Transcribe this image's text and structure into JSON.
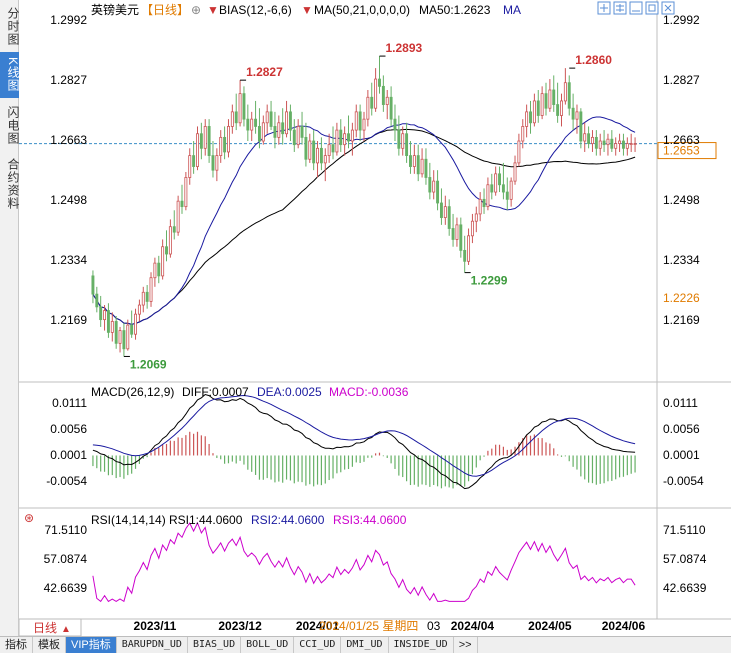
{
  "sidebar": {
    "tabs": [
      {
        "label": "分时图",
        "active": false
      },
      {
        "label": "K线图",
        "active": true
      },
      {
        "label": "闪电图",
        "active": false
      },
      {
        "label": "合约资料",
        "active": false
      }
    ]
  },
  "header": {
    "symbol": "英镑美元",
    "period_tag": "【日线】",
    "bias_label": "BIAS(12,-6,6)",
    "ma_label": "MA(50,21,0,0,0,0)",
    "ma50_value": "MA50:1.2623",
    "ma_suffix": "MA",
    "colors": {
      "symbol": "#000000",
      "period": "#e07b00",
      "ma50": "#1a1aa0"
    }
  },
  "window_buttons": [
    "move-icon",
    "grid-icon",
    "minimize-icon",
    "restore-icon",
    "close-icon"
  ],
  "price_panel": {
    "y_ticks": [
      "1.2992",
      "1.2827",
      "1.2663",
      "1.2498",
      "1.2334",
      "1.2169"
    ],
    "current_price": "1.2653",
    "current_line_price": 1.2653,
    "low_marker": "1.2226",
    "annotations": [
      {
        "text": "1.2827",
        "price": 1.2827,
        "index": 38,
        "color": "#cc3333"
      },
      {
        "text": "1.2893",
        "price": 1.2893,
        "index": 74,
        "color": "#cc3333"
      },
      {
        "text": "1.2860",
        "price": 1.286,
        "index": 123,
        "color": "#cc3333"
      },
      {
        "text": "1.2299",
        "price": 1.2299,
        "index": 96,
        "color": "#3c9a3c"
      },
      {
        "text": "1.2069",
        "price": 1.2069,
        "index": 8,
        "color": "#3c9a3c"
      }
    ],
    "period_label": "日线"
  },
  "macd_panel": {
    "title": "MACD(26,12,9)",
    "diff": "DIFF:0.0007",
    "dea": "DEA:0.0025",
    "macd": "MACD:-0.0036",
    "y_ticks": [
      "0.0111",
      "0.0056",
      "0.0001",
      "-0.0054"
    ],
    "colors": {
      "dea": "#1a1aa0",
      "macd": "#cc00cc"
    }
  },
  "rsi_panel": {
    "title": "RSI(14,14,14)",
    "rsi1": "RSI1:44.0600",
    "rsi2": "RSI2:44.0600",
    "rsi3": "RSI3:44.0600",
    "y_ticks": [
      "71.5110",
      "57.0874",
      "42.6639"
    ],
    "colors": {
      "rsi2": "#1a1aa0",
      "rsi3": "#cc00cc",
      "line": "#cc00cc"
    }
  },
  "x_axis": {
    "labels": [
      {
        "text": "2023/11",
        "index": 16
      },
      {
        "text": "2023/12",
        "index": 38
      },
      {
        "text": "2024/01",
        "index": 58
      },
      {
        "text": "2024/04",
        "index": 98
      },
      {
        "text": "2024/05",
        "index": 118
      },
      {
        "text": "2024/06",
        "index": 137
      }
    ],
    "cursor_date": "2024/01/25 星期四",
    "cursor_suffix": "03",
    "cursor_color": "#e07b00"
  },
  "chart_data": [
    {
      "type": "candlestick",
      "ylim": [
        1.2069,
        1.2992
      ],
      "hlines_ma": [
        "MA50",
        "MA21"
      ],
      "candles_count": 141,
      "candles": [
        [
          1.229,
          1.2305,
          1.2215,
          1.224
        ],
        [
          1.224,
          1.226,
          1.219,
          1.2205
        ],
        [
          1.2205,
          1.2235,
          1.215,
          1.217
        ],
        [
          1.217,
          1.221,
          1.214,
          1.2195
        ],
        [
          1.2195,
          1.2215,
          1.212,
          1.2135
        ],
        [
          1.2135,
          1.219,
          1.211,
          1.2165
        ],
        [
          1.2165,
          1.218,
          1.209,
          1.2105
        ],
        [
          1.2105,
          1.215,
          1.208,
          1.214
        ],
        [
          1.214,
          1.216,
          1.2069,
          1.209
        ],
        [
          1.209,
          1.217,
          1.2085,
          1.2155
        ],
        [
          1.2155,
          1.2195,
          1.212,
          1.213
        ],
        [
          1.213,
          1.22,
          1.2115,
          1.2185
        ],
        [
          1.2185,
          1.2225,
          1.2165,
          1.221
        ],
        [
          1.221,
          1.226,
          1.219,
          1.2245
        ],
        [
          1.2245,
          1.2265,
          1.22,
          1.222
        ],
        [
          1.222,
          1.23,
          1.2205,
          1.2285
        ],
        [
          1.2285,
          1.234,
          1.226,
          1.2325
        ],
        [
          1.2325,
          1.2345,
          1.227,
          1.229
        ],
        [
          1.229,
          1.239,
          1.228,
          1.237
        ],
        [
          1.237,
          1.2415,
          1.233,
          1.235
        ],
        [
          1.235,
          1.2445,
          1.234,
          1.2425
        ],
        [
          1.2425,
          1.247,
          1.239,
          1.241
        ],
        [
          1.241,
          1.251,
          1.24,
          1.2495
        ],
        [
          1.2495,
          1.254,
          1.246,
          1.248
        ],
        [
          1.248,
          1.2575,
          1.247,
          1.256
        ],
        [
          1.256,
          1.264,
          1.254,
          1.262
        ],
        [
          1.262,
          1.266,
          1.257,
          1.259
        ],
        [
          1.259,
          1.27,
          1.258,
          1.268
        ],
        [
          1.268,
          1.271,
          1.261,
          1.264
        ],
        [
          1.264,
          1.272,
          1.262,
          1.27
        ],
        [
          1.27,
          1.272,
          1.26,
          1.262
        ],
        [
          1.262,
          1.266,
          1.256,
          1.258
        ],
        [
          1.258,
          1.264,
          1.255,
          1.262
        ],
        [
          1.262,
          1.269,
          1.26,
          1.267
        ],
        [
          1.267,
          1.27,
          1.261,
          1.263
        ],
        [
          1.263,
          1.272,
          1.2615,
          1.27
        ],
        [
          1.27,
          1.276,
          1.268,
          1.274
        ],
        [
          1.274,
          1.279,
          1.269,
          1.271
        ],
        [
          1.271,
          1.2827,
          1.27,
          1.279
        ],
        [
          1.279,
          1.281,
          1.27,
          1.272
        ],
        [
          1.272,
          1.276,
          1.266,
          1.269
        ],
        [
          1.269,
          1.274,
          1.266,
          1.272
        ],
        [
          1.272,
          1.277,
          1.268,
          1.27
        ],
        [
          1.27,
          1.275,
          1.264,
          1.266
        ],
        [
          1.266,
          1.273,
          1.265,
          1.271
        ],
        [
          1.271,
          1.276,
          1.268,
          1.274
        ],
        [
          1.274,
          1.277,
          1.269,
          1.27
        ],
        [
          1.27,
          1.274,
          1.264,
          1.267
        ],
        [
          1.267,
          1.273,
          1.265,
          1.271
        ],
        [
          1.271,
          1.275,
          1.265,
          1.268
        ],
        [
          1.268,
          1.277,
          1.267,
          1.274
        ],
        [
          1.274,
          1.276,
          1.266,
          1.269
        ],
        [
          1.269,
          1.272,
          1.263,
          1.265
        ],
        [
          1.265,
          1.272,
          1.264,
          1.27
        ],
        [
          1.27,
          1.274,
          1.265,
          1.267
        ],
        [
          1.267,
          1.271,
          1.259,
          1.261
        ],
        [
          1.261,
          1.268,
          1.26,
          1.266
        ],
        [
          1.266,
          1.269,
          1.258,
          1.26
        ],
        [
          1.26,
          1.266,
          1.256,
          1.264
        ],
        [
          1.264,
          1.267,
          1.258,
          1.26
        ],
        [
          1.26,
          1.264,
          1.255,
          1.262
        ],
        [
          1.262,
          1.268,
          1.26,
          1.265
        ],
        [
          1.265,
          1.27,
          1.261,
          1.263
        ],
        [
          1.263,
          1.271,
          1.262,
          1.269
        ],
        [
          1.269,
          1.272,
          1.263,
          1.265
        ],
        [
          1.265,
          1.27,
          1.262,
          1.268
        ],
        [
          1.268,
          1.273,
          1.264,
          1.266
        ],
        [
          1.266,
          1.271,
          1.262,
          1.269
        ],
        [
          1.269,
          1.276,
          1.267,
          1.274
        ],
        [
          1.274,
          1.276,
          1.266,
          1.269
        ],
        [
          1.269,
          1.274,
          1.266,
          1.272
        ],
        [
          1.272,
          1.28,
          1.27,
          1.278
        ],
        [
          1.278,
          1.282,
          1.273,
          1.275
        ],
        [
          1.275,
          1.286,
          1.274,
          1.283
        ],
        [
          1.283,
          1.2893,
          1.279,
          1.281
        ],
        [
          1.281,
          1.284,
          1.274,
          1.276
        ],
        [
          1.276,
          1.28,
          1.272,
          1.278
        ],
        [
          1.278,
          1.281,
          1.27,
          1.272
        ],
        [
          1.272,
          1.276,
          1.266,
          1.269
        ],
        [
          1.269,
          1.273,
          1.262,
          1.264
        ],
        [
          1.264,
          1.27,
          1.262,
          1.268
        ],
        [
          1.268,
          1.271,
          1.26,
          1.262
        ],
        [
          1.262,
          1.266,
          1.257,
          1.259
        ],
        [
          1.259,
          1.265,
          1.257,
          1.262
        ],
        [
          1.262,
          1.265,
          1.255,
          1.257
        ],
        [
          1.257,
          1.264,
          1.256,
          1.261
        ],
        [
          1.261,
          1.264,
          1.254,
          1.256
        ],
        [
          1.256,
          1.26,
          1.25,
          1.252
        ],
        [
          1.252,
          1.258,
          1.25,
          1.255
        ],
        [
          1.255,
          1.258,
          1.247,
          1.249
        ],
        [
          1.249,
          1.253,
          1.243,
          1.245
        ],
        [
          1.245,
          1.251,
          1.243,
          1.248
        ],
        [
          1.248,
          1.25,
          1.24,
          1.242
        ],
        [
          1.242,
          1.246,
          1.237,
          1.239
        ],
        [
          1.239,
          1.245,
          1.237,
          1.243
        ],
        [
          1.243,
          1.245,
          1.234,
          1.236
        ],
        [
          1.236,
          1.24,
          1.2299,
          1.233
        ],
        [
          1.233,
          1.242,
          1.232,
          1.24
        ],
        [
          1.24,
          1.246,
          1.238,
          1.244
        ],
        [
          1.244,
          1.248,
          1.241,
          1.246
        ],
        [
          1.246,
          1.252,
          1.244,
          1.25
        ],
        [
          1.25,
          1.253,
          1.246,
          1.248
        ],
        [
          1.248,
          1.256,
          1.247,
          1.254
        ],
        [
          1.254,
          1.257,
          1.25,
          1.252
        ],
        [
          1.252,
          1.259,
          1.251,
          1.257
        ],
        [
          1.257,
          1.259,
          1.252,
          1.254
        ],
        [
          1.254,
          1.26,
          1.25,
          1.252
        ],
        [
          1.252,
          1.256,
          1.247,
          1.25
        ],
        [
          1.25,
          1.256,
          1.248,
          1.255
        ],
        [
          1.255,
          1.262,
          1.254,
          1.26
        ],
        [
          1.26,
          1.268,
          1.259,
          1.266
        ],
        [
          1.266,
          1.272,
          1.264,
          1.27
        ],
        [
          1.27,
          1.276,
          1.267,
          1.274
        ],
        [
          1.274,
          1.277,
          1.268,
          1.271
        ],
        [
          1.271,
          1.279,
          1.27,
          1.277
        ],
        [
          1.277,
          1.28,
          1.271,
          1.273
        ],
        [
          1.273,
          1.281,
          1.272,
          1.279
        ],
        [
          1.279,
          1.282,
          1.273,
          1.275
        ],
        [
          1.275,
          1.283,
          1.274,
          1.28
        ],
        [
          1.28,
          1.284,
          1.274,
          1.276
        ],
        [
          1.276,
          1.282,
          1.271,
          1.273
        ],
        [
          1.273,
          1.279,
          1.27,
          1.277
        ],
        [
          1.277,
          1.286,
          1.276,
          1.282
        ],
        [
          1.282,
          1.284,
          1.273,
          1.275
        ],
        [
          1.275,
          1.279,
          1.269,
          1.272
        ],
        [
          1.272,
          1.276,
          1.268,
          1.274
        ],
        [
          1.274,
          1.275,
          1.264,
          1.266
        ],
        [
          1.266,
          1.271,
          1.263,
          1.268
        ],
        [
          1.268,
          1.27,
          1.264,
          1.2653
        ],
        [
          1.2653,
          1.269,
          1.263,
          1.267
        ],
        [
          1.267,
          1.269,
          1.262,
          1.264
        ],
        [
          1.264,
          1.268,
          1.262,
          1.266
        ],
        [
          1.266,
          1.269,
          1.263,
          1.265
        ],
        [
          1.265,
          1.268,
          1.262,
          1.2665
        ],
        [
          1.2665,
          1.269,
          1.263,
          1.264
        ],
        [
          1.264,
          1.267,
          1.262,
          1.2653
        ],
        [
          1.2653,
          1.268,
          1.263,
          1.266
        ],
        [
          1.266,
          1.268,
          1.262,
          1.264
        ],
        [
          1.264,
          1.267,
          1.262,
          1.2653
        ],
        [
          1.2653,
          1.268,
          1.263,
          1.2653
        ],
        [
          1.2653,
          1.267,
          1.263,
          1.2653
        ]
      ]
    },
    {
      "type": "line",
      "name": "MACD",
      "ylim": [
        -0.009,
        0.0125
      ],
      "diff_last": 0.0007,
      "dea_last": 0.0025,
      "macd_last": -0.0036
    },
    {
      "type": "line",
      "name": "RSI",
      "ylim": [
        34,
        78
      ],
      "rsi_last": 44.06
    }
  ]
}
